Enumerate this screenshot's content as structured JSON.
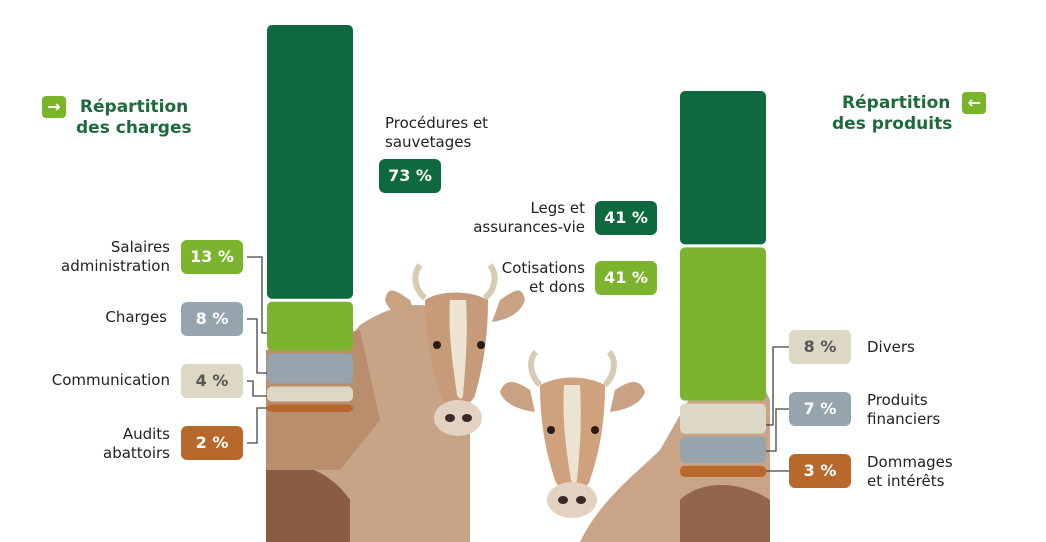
{
  "colors": {
    "dark_green": "#0e6a3e",
    "light_green": "#7cb52d",
    "grey_blue": "#95a4ad",
    "beige": "#dcd8c5",
    "orange": "#b8682b",
    "title_green": "#1f6a3c"
  },
  "icons": {
    "left_title_icon": "arrow-right-icon",
    "right_title_icon": "arrow-left-icon"
  },
  "chart_data": [
    {
      "type": "bar",
      "stacked": true,
      "title": "Répartition des charges",
      "title_lines": [
        "Répartition",
        "des charges"
      ],
      "series": [
        {
          "name": "Procédures et sauvetages",
          "label_lines": [
            "Procédures et",
            "sauvetages"
          ],
          "value": 73,
          "display": "73 %",
          "color": "#0e6a3e",
          "text_color": "#ffffff"
        },
        {
          "name": "Salaires administration",
          "label_lines": [
            "Salaires",
            "administration"
          ],
          "value": 13,
          "display": "13 %",
          "color": "#7cb52d",
          "text_color": "#ffffff"
        },
        {
          "name": "Charges",
          "label_lines": [
            "Charges"
          ],
          "value": 8,
          "display": "8 %",
          "color": "#95a4ad",
          "text_color": "#ffffff"
        },
        {
          "name": "Communication",
          "label_lines": [
            "Communication"
          ],
          "value": 4,
          "display": "4 %",
          "color": "#dcd8c5",
          "text_color": "#555555"
        },
        {
          "name": "Audits abattoirs",
          "label_lines": [
            "Audits",
            "abattoirs"
          ],
          "value": 2,
          "display": "2 %",
          "color": "#b8682b",
          "text_color": "#ffffff"
        }
      ]
    },
    {
      "type": "bar",
      "stacked": true,
      "title": "Répartition des produits",
      "title_lines": [
        "Répartition",
        "des produits"
      ],
      "series": [
        {
          "name": "Legs et assurances-vie",
          "label_lines": [
            "Legs et",
            "assurances-vie"
          ],
          "value": 41,
          "display": "41 %",
          "color": "#0e6a3e",
          "text_color": "#ffffff"
        },
        {
          "name": "Cotisations et dons",
          "label_lines": [
            "Cotisations",
            "et dons"
          ],
          "value": 41,
          "display": "41 %",
          "color": "#7cb52d",
          "text_color": "#ffffff"
        },
        {
          "name": "Divers",
          "label_lines": [
            "Divers"
          ],
          "value": 8,
          "display": "8 %",
          "color": "#dcd8c5",
          "text_color": "#555555"
        },
        {
          "name": "Produits financiers",
          "label_lines": [
            "Produits",
            "financiers"
          ],
          "value": 7,
          "display": "7 %",
          "color": "#95a4ad",
          "text_color": "#ffffff"
        },
        {
          "name": "Dommages et intérêts",
          "label_lines": [
            "Dommages",
            "et intérêts"
          ],
          "value": 3,
          "display": "3 %",
          "color": "#b8682b",
          "text_color": "#ffffff"
        }
      ]
    }
  ]
}
